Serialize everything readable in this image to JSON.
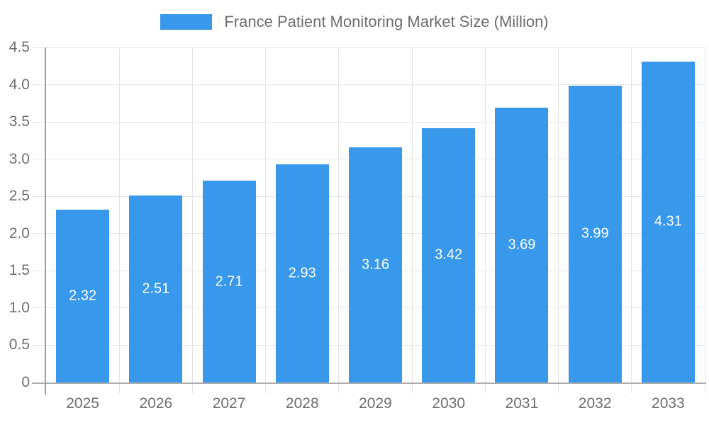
{
  "chart_data": {
    "type": "bar",
    "title": "France Patient Monitoring Market Size (Million)",
    "categories": [
      "2025",
      "2026",
      "2027",
      "2028",
      "2029",
      "2030",
      "2031",
      "2032",
      "2033"
    ],
    "values": [
      2.32,
      2.51,
      2.71,
      2.93,
      3.16,
      3.42,
      3.69,
      3.99,
      4.31
    ],
    "xlabel": "",
    "ylabel": "",
    "ylim": [
      0,
      4.5
    ],
    "ytick_step": 0.5,
    "ytick_labels": [
      "0",
      "0.5",
      "1.0",
      "1.5",
      "2.0",
      "2.5",
      "3.0",
      "3.5",
      "4.0",
      "4.5"
    ],
    "value_label_decimals": 2,
    "grid": true,
    "legend_position": "top",
    "colors": {
      "bar": "#3899EC",
      "bar_label": "#FFFFFF",
      "axis_text": "#6E6E6E",
      "gridline": "#E4E4E4",
      "y_axis_line": "#9C9C9C",
      "x_axis_line": "#ACACAC",
      "background": "#FFFFFF"
    }
  }
}
